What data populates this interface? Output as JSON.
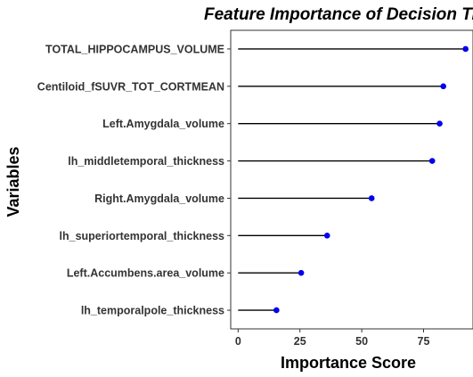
{
  "chart_data": {
    "type": "lollipop",
    "title": "Feature Importance of Decision Tr",
    "xlabel": "Importance Score",
    "ylabel": "Variables",
    "xlim": [
      -3,
      95
    ],
    "xticks": [
      0,
      25,
      50,
      75
    ],
    "xtick_labels": [
      "0",
      "25",
      "50",
      "75"
    ],
    "grid": false,
    "legend": "none",
    "categories": [
      "TOTAL_HIPPOCAMPUS_VOLUME",
      "Centiloid_fSUVR_TOT_CORTMEAN",
      "Left.Amygdala_volume",
      "lh_middletemporal_thickness",
      "Right.Amygdala_volume",
      "lh_superiortemporal_thickness",
      "Left.Accumbens.area_volume",
      "lh_temporalpole_thickness"
    ],
    "values": [
      92,
      83,
      81.5,
      78.5,
      54,
      36,
      25.5,
      15.5
    ],
    "colors": {
      "point": "#0000ee",
      "stem": "#000000",
      "axis": "#333333",
      "panel_border": "#333333"
    }
  }
}
